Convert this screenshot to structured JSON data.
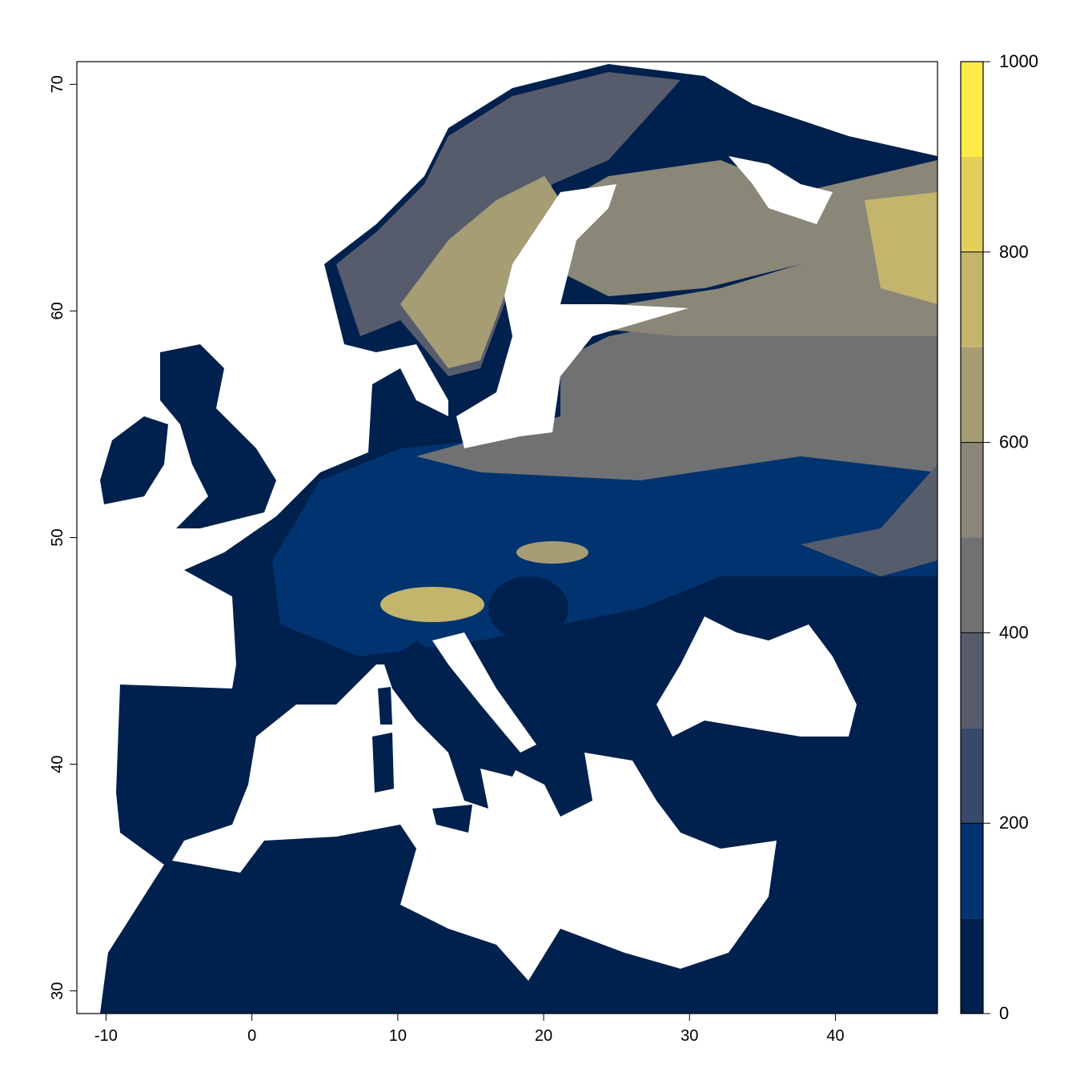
{
  "chart_data": {
    "type": "heatmap",
    "title": "",
    "xlabel": "",
    "ylabel": "",
    "xlim": [
      -12,
      47
    ],
    "ylim": [
      29,
      71
    ],
    "x_ticks": [
      -10,
      0,
      10,
      20,
      30,
      40
    ],
    "y_ticks": [
      30,
      40,
      50,
      60,
      70
    ],
    "legend": {
      "placement": "right",
      "range": [
        0,
        1000
      ],
      "ticks": [
        0,
        200,
        400,
        600,
        800,
        1000
      ],
      "breaks": [
        0,
        100,
        200,
        300,
        400,
        500,
        600,
        700,
        800,
        900,
        1000
      ],
      "colors": [
        "#00204D",
        "#00336F",
        "#39486B",
        "#575C6D",
        "#707173",
        "#8A8779",
        "#A69D75",
        "#C4B56C",
        "#E4CF5B",
        "#FFEA46"
      ]
    },
    "na_color": "#FFFFFF"
  }
}
